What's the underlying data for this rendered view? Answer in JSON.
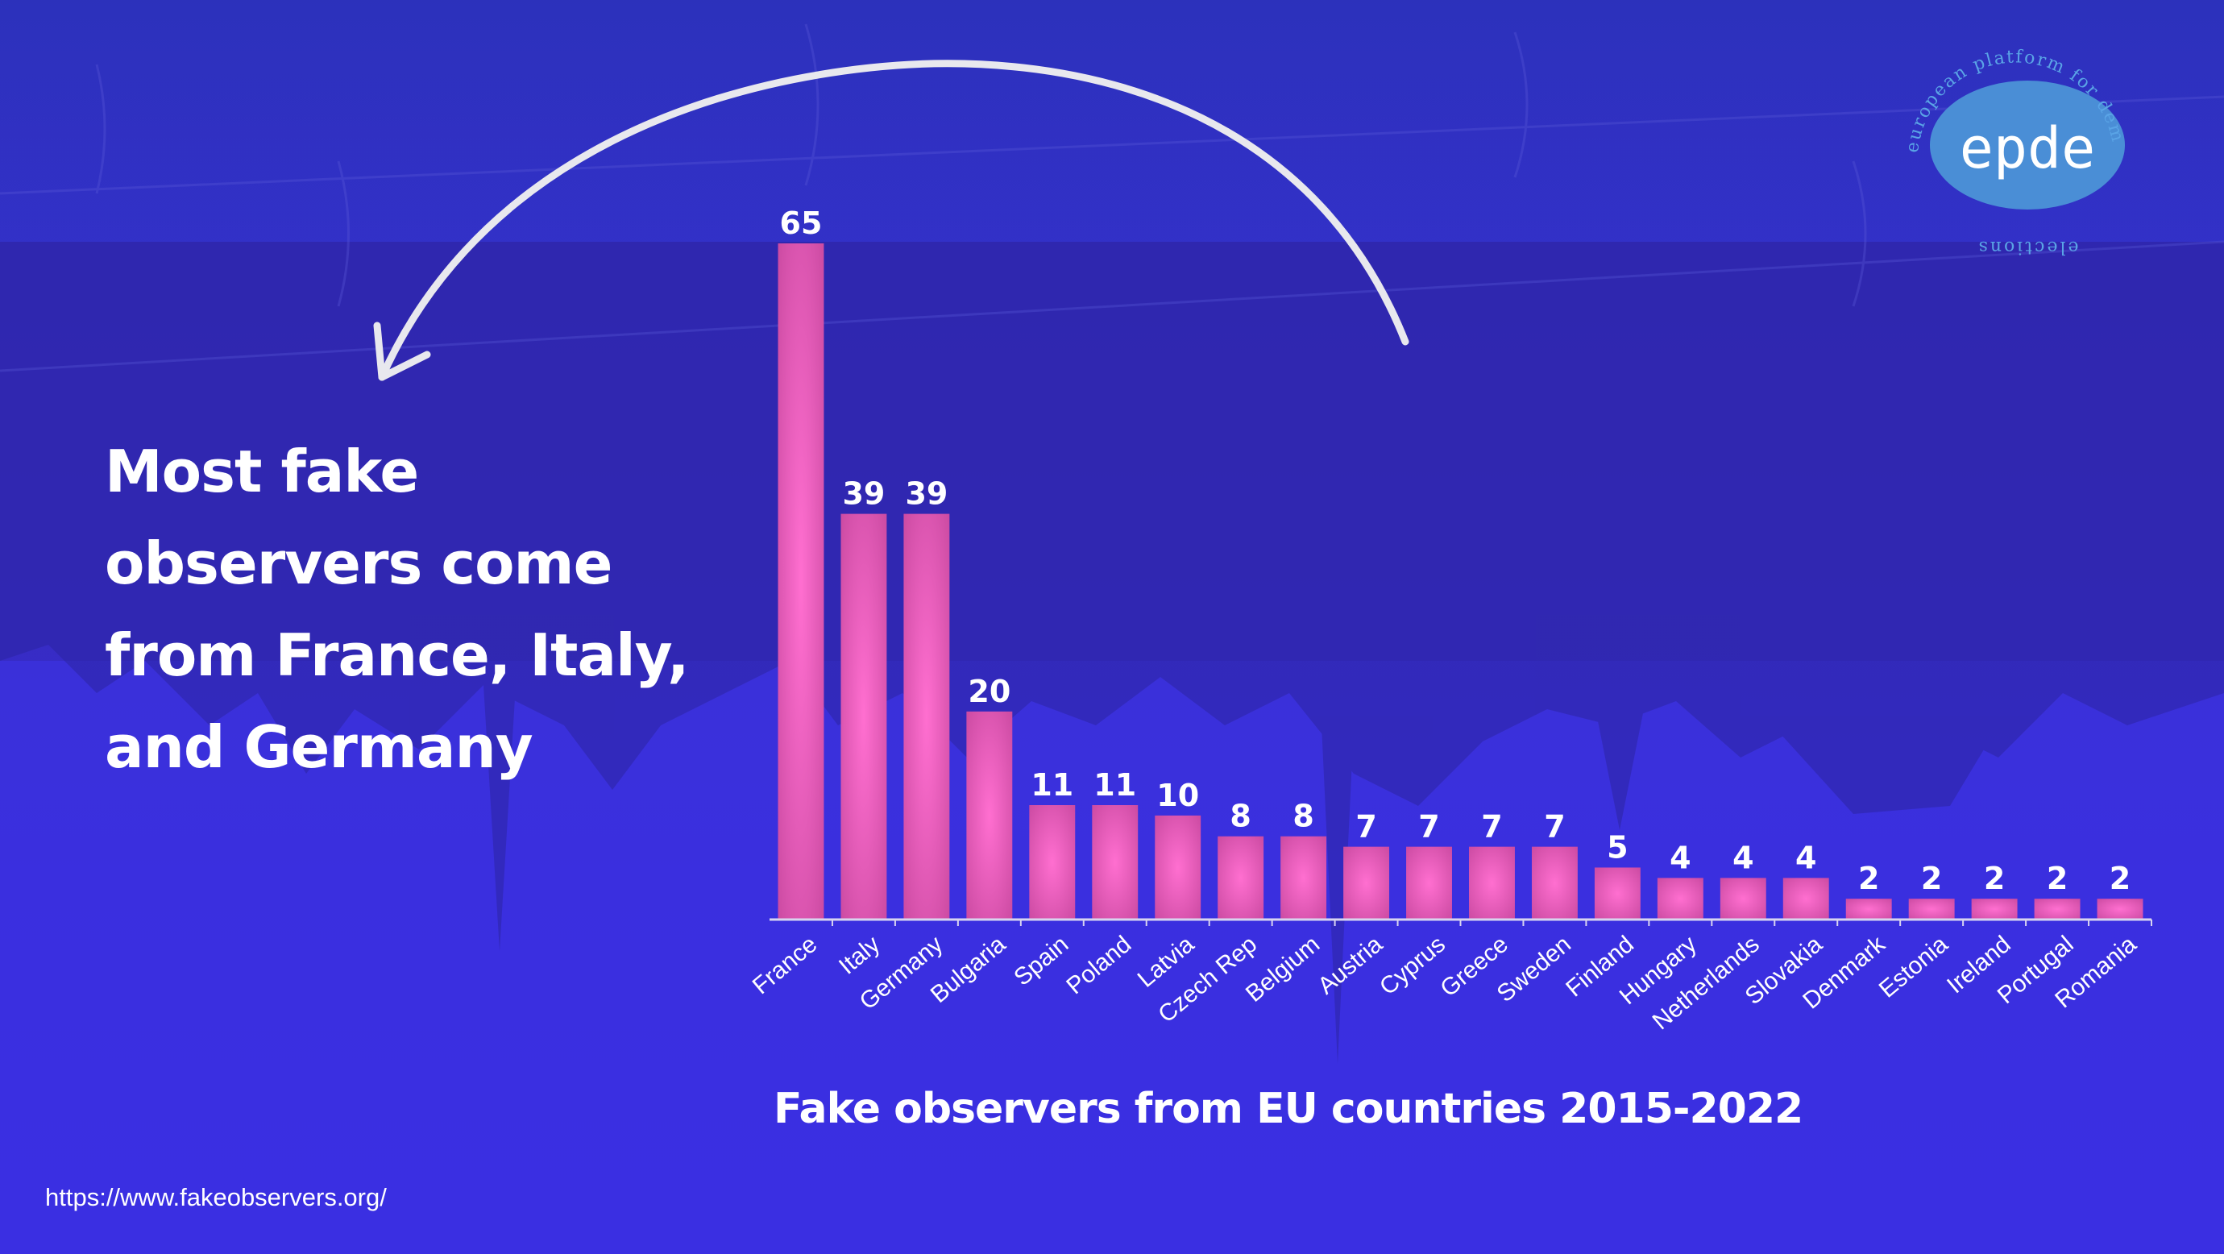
{
  "headline": "Most fake observers come from France, Italy, and Germany",
  "headline_lines": [
    "Most fake",
    "observers come",
    "from France, Italy,",
    "and Germany"
  ],
  "source_url": "https://www.fakeobservers.org/",
  "logo": {
    "name": "epde",
    "ring_text": "european platform for democratic elections",
    "ring_top": "european platform for democratic",
    "ring_bottom": "elections"
  },
  "colors": {
    "background": "#3a31d8",
    "bar": "#e05ab6",
    "bar_glow": "#ff6fd0",
    "text": "#ffffff",
    "logo_fill": "#4a8ed6",
    "arrow": "#e8e8ee"
  },
  "chart_data": {
    "type": "bar",
    "title": "Fake observers from EU countries 2015-2022",
    "categories": [
      "France",
      "Italy",
      "Germany",
      "Bulgaria",
      "Spain",
      "Poland",
      "Latvia",
      "Czech Rep",
      "Belgium",
      "Austria",
      "Cyprus",
      "Greece",
      "Sweden",
      "Finland",
      "Hungary",
      "Netherlands",
      "Slovakia",
      "Denmark",
      "Estonia",
      "Ireland",
      "Portugal",
      "Romania"
    ],
    "values": [
      65,
      39,
      39,
      20,
      11,
      11,
      10,
      8,
      8,
      7,
      7,
      7,
      7,
      5,
      4,
      4,
      4,
      2,
      2,
      2,
      2,
      2
    ],
    "ylim": [
      0,
      65
    ],
    "grid": false,
    "data_labels": true,
    "xlabel": "",
    "ylabel": ""
  }
}
